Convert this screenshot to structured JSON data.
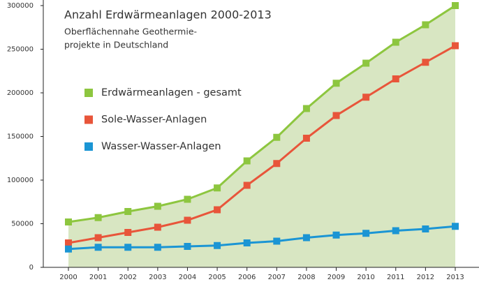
{
  "chart_data": {
    "type": "line",
    "title": "Anzahl Erdwärmeanlagen 2000-2013",
    "subtitle": [
      "Oberflächennahe Geothermie-",
      "projekte in Deutschland"
    ],
    "categories": [
      "2000",
      "2001",
      "2002",
      "2003",
      "2004",
      "2005",
      "2006",
      "2007",
      "2008",
      "2009",
      "2010",
      "2011",
      "2012",
      "2013"
    ],
    "series": [
      {
        "name": "Erdwärmeanlagen - gesamt",
        "color": "#8dc63f",
        "values": [
          52000,
          57000,
          64000,
          70000,
          78000,
          91000,
          122000,
          149000,
          182000,
          211000,
          234000,
          258000,
          278000,
          300000
        ]
      },
      {
        "name": "Sole-Wasser-Anlagen",
        "color": "#e8553a",
        "values": [
          28000,
          34000,
          40000,
          46000,
          54000,
          66000,
          94000,
          119000,
          148000,
          174000,
          195000,
          216000,
          235000,
          254000
        ]
      },
      {
        "name": "Wasser-Wasser-Anlagen",
        "color": "#1b95d4",
        "values": [
          21000,
          23000,
          23000,
          23000,
          24000,
          25000,
          28000,
          30000,
          34000,
          37000,
          39000,
          42000,
          44000,
          47000
        ]
      }
    ],
    "area_color": "#d8e6c2",
    "ylim": [
      0,
      300000
    ],
    "yticks": [
      0,
      50000,
      100000,
      150000,
      200000,
      250000,
      300000
    ],
    "legend": "upper-left"
  }
}
